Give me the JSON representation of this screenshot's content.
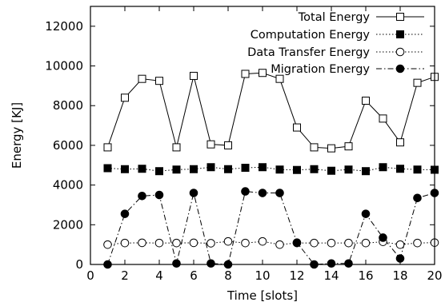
{
  "chart_data": {
    "type": "line",
    "xlabel": "Time [slots]",
    "ylabel": "Energy [KJ]",
    "xlim": [
      0,
      20
    ],
    "ylim": [
      0,
      13000
    ],
    "xticks": [
      0,
      2,
      4,
      6,
      8,
      10,
      12,
      14,
      16,
      18,
      20
    ],
    "yticks": [
      0,
      2000,
      4000,
      6000,
      8000,
      10000,
      12000
    ],
    "grid": false,
    "legend_position": "top-right",
    "x": [
      1,
      2,
      3,
      4,
      5,
      6,
      7,
      8,
      9,
      10,
      11,
      12,
      13,
      14,
      15,
      16,
      17,
      18,
      19,
      20
    ],
    "series": [
      {
        "name": "Total Energy",
        "marker": "open-square",
        "line": "solid",
        "values": [
          5900,
          8400,
          9350,
          9250,
          5900,
          9500,
          6050,
          6000,
          9600,
          9650,
          9350,
          6900,
          5900,
          5850,
          5950,
          8250,
          7350,
          6150,
          9150,
          9450
        ]
      },
      {
        "name": "Computation Energy",
        "marker": "filled-square",
        "line": "dotted",
        "values": [
          4850,
          4800,
          4820,
          4700,
          4780,
          4800,
          4900,
          4800,
          4870,
          4900,
          4780,
          4760,
          4800,
          4720,
          4780,
          4700,
          4900,
          4820,
          4780,
          4770
        ]
      },
      {
        "name": "Data Transfer Energy",
        "marker": "open-circle",
        "line": "dotted",
        "values": [
          1000,
          1080,
          1090,
          1080,
          1080,
          1090,
          1070,
          1160,
          1080,
          1160,
          1000,
          1080,
          1080,
          1080,
          1080,
          1080,
          1140,
          1000,
          1080,
          1100
        ]
      },
      {
        "name": "Migration Energy",
        "marker": "filled-circle",
        "line": "dash-dot",
        "values": [
          0,
          2550,
          3450,
          3500,
          50,
          3600,
          50,
          0,
          3680,
          3600,
          3600,
          1100,
          0,
          50,
          50,
          2550,
          1350,
          300,
          3350,
          3600
        ]
      }
    ]
  }
}
